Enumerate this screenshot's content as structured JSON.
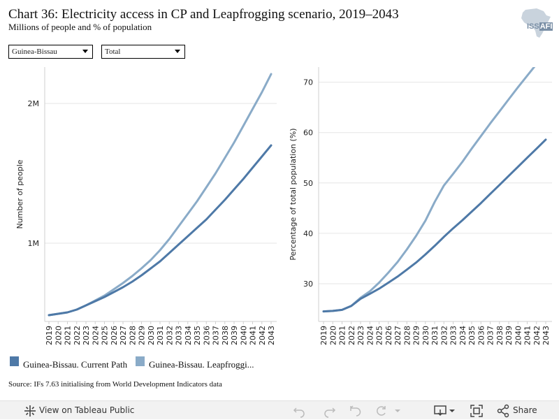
{
  "header": {
    "title": "Chart 36: Electricity access in CP and Leapfrogging scenario, 2019–2043",
    "subtitle": "Millions of people and % of population"
  },
  "logo": {
    "text_main": "ISS",
    "text_highlight": "AFI"
  },
  "filters": {
    "country": {
      "selected": "Guinea-Bissau"
    },
    "measure": {
      "selected": "Total"
    }
  },
  "colors": {
    "current_path": "#4e79a7",
    "leapfrogging": "#8aabc8"
  },
  "chart_data": [
    {
      "type": "line",
      "xlabel": "",
      "ylabel": "Number of people",
      "y_ticks": [
        1000000,
        2000000
      ],
      "y_tick_labels": [
        "1M",
        "2M"
      ],
      "ylim": [
        440000,
        2260000
      ],
      "x": [
        "2019",
        "2020",
        "2021",
        "2022",
        "2023",
        "2024",
        "2025",
        "2026",
        "2027",
        "2028",
        "2029",
        "2030",
        "2031",
        "2032",
        "2033",
        "2034",
        "2035",
        "2036",
        "2037",
        "2038",
        "2039",
        "2040",
        "2041",
        "2042",
        "2043"
      ],
      "series": [
        {
          "name": "Guinea-Bissau. Current Path",
          "color": "#4e79a7",
          "values": [
            485000,
            495000,
            505000,
            525000,
            555000,
            585000,
            615000,
            650000,
            685000,
            725000,
            770000,
            820000,
            870000,
            930000,
            990000,
            1050000,
            1110000,
            1170000,
            1240000,
            1310000,
            1385000,
            1460000,
            1540000,
            1620000,
            1700000
          ]
        },
        {
          "name": "Guinea-Bissau. Leapfrogging",
          "color": "#8aabc8",
          "values": [
            485000,
            495000,
            505000,
            525000,
            555000,
            590000,
            625000,
            670000,
            715000,
            765000,
            820000,
            880000,
            950000,
            1030000,
            1120000,
            1210000,
            1300000,
            1400000,
            1500000,
            1610000,
            1720000,
            1840000,
            1960000,
            2080000,
            2210000
          ]
        }
      ]
    },
    {
      "type": "line",
      "xlabel": "",
      "ylabel": "Percentage of total population (%)",
      "y_ticks": [
        30,
        40,
        50,
        60,
        70
      ],
      "y_tick_labels": [
        "30",
        "40",
        "50",
        "60",
        "70"
      ],
      "ylim": [
        22.5,
        73
      ],
      "x": [
        "2019",
        "2020",
        "2021",
        "2022",
        "2023",
        "2024",
        "2025",
        "2026",
        "2027",
        "2028",
        "2029",
        "2030",
        "2031",
        "2032",
        "2033",
        "2034",
        "2035",
        "2036",
        "2037",
        "2038",
        "2039",
        "2040",
        "2041",
        "2042",
        "2043"
      ],
      "series": [
        {
          "name": "Guinea-Bissau. Current Path",
          "color": "#4e79a7",
          "values": [
            24.5,
            24.6,
            24.8,
            25.6,
            27.0,
            28.0,
            29.0,
            30.2,
            31.4,
            32.8,
            34.2,
            35.8,
            37.5,
            39.3,
            41.0,
            42.6,
            44.3,
            46.0,
            47.8,
            49.6,
            51.4,
            53.2,
            55.0,
            56.8,
            58.6
          ]
        },
        {
          "name": "Guinea-Bissau. Leapfrogging",
          "color": "#8aabc8",
          "values": [
            24.5,
            24.6,
            24.8,
            25.6,
            27.2,
            28.5,
            30.2,
            32.2,
            34.3,
            36.8,
            39.5,
            42.5,
            46.2,
            49.5,
            51.8,
            54.2,
            56.8,
            59.3,
            61.8,
            64.2,
            66.6,
            69.0,
            71.3,
            73.6,
            76.0
          ]
        }
      ]
    }
  ],
  "legend": {
    "items": [
      {
        "label": "Guinea-Bissau. Current Path",
        "color": "#4e79a7"
      },
      {
        "label": "Guinea-Bissau. Leapfroggi...",
        "color": "#8aabc8"
      }
    ]
  },
  "source": "Source: IFs 7.63 initialising from World Development Indicators data",
  "toolbar": {
    "view_label": "View on Tableau Public",
    "share_label": "Share"
  }
}
